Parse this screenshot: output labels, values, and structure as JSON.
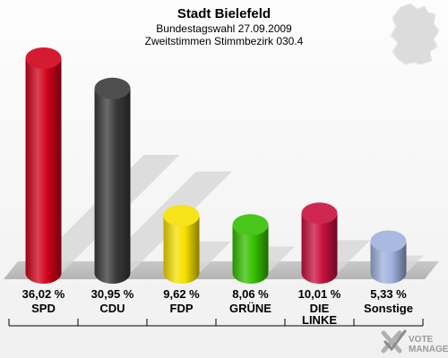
{
  "chart_data": {
    "type": "bar",
    "title": "Stadt Bielefeld",
    "subtitle": "Bundestagswahl 27.09.2009",
    "subtitle2": "Zweitstimmen Stimmbezirk 030.4",
    "categories": [
      "SPD",
      "CDU",
      "FDP",
      "GRÜNE",
      "DIE LINKE",
      "Sonstige"
    ],
    "values": [
      36.02,
      30.95,
      9.62,
      8.06,
      10.01,
      5.33
    ],
    "value_labels": [
      "36,02 %",
      "30,95 %",
      "9,62 %",
      "8,06 %",
      "10,01 %",
      "5,33 %"
    ],
    "colors": [
      "#d0021b",
      "#3a3a3a",
      "#f5e000",
      "#35c000",
      "#c8103e",
      "#9fb1dd"
    ],
    "ylim": [
      0,
      36.02
    ],
    "grid": false,
    "legend": "none"
  },
  "logo": {
    "line1": "VOTE",
    "line2": "MANAGER",
    "icon": "checkmark-x-icon"
  },
  "map_icon": "germany-map-icon"
}
